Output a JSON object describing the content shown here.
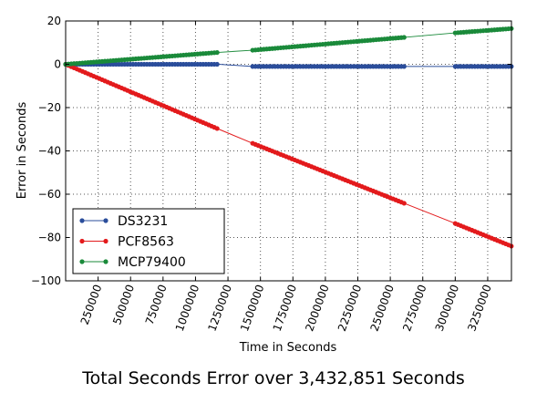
{
  "chart_data": {
    "type": "line",
    "title": "",
    "xlabel": "Time in Seconds",
    "ylabel": "Error in Seconds",
    "xlim": [
      0,
      3432851
    ],
    "ylim": [
      -100,
      20
    ],
    "xticks": [
      250000,
      500000,
      750000,
      1000000,
      1250000,
      1500000,
      1750000,
      2000000,
      2250000,
      2500000,
      2750000,
      3000000,
      3250000
    ],
    "yticks": [
      -100,
      -80,
      -60,
      -40,
      -20,
      0,
      20
    ],
    "grid": true,
    "legend_position": "lower-left",
    "series": [
      {
        "name": "DS3231",
        "color": "#2a4d9b",
        "segments": [
          [
            0,
            1180000
          ],
          [
            1440000,
            2620000
          ],
          [
            3000000,
            3432851
          ]
        ],
        "points": [
          [
            0,
            0
          ],
          [
            1180000,
            0
          ],
          [
            1440000,
            -1
          ],
          [
            2620000,
            -1
          ],
          [
            3000000,
            -1
          ],
          [
            3432851,
            -1
          ]
        ]
      },
      {
        "name": "PCF8563",
        "color": "#e31a1c",
        "segments": [
          [
            0,
            1180000
          ],
          [
            1440000,
            2620000
          ],
          [
            3000000,
            3432851
          ]
        ],
        "points": [
          [
            0,
            0
          ],
          [
            1180000,
            -30
          ],
          [
            1440000,
            -36.5
          ],
          [
            2620000,
            -64.5
          ],
          [
            3000000,
            -73.5
          ],
          [
            3432851,
            -84
          ]
        ]
      },
      {
        "name": "MCP79400",
        "color": "#1a8a3a",
        "segments": [
          [
            0,
            1180000
          ],
          [
            1440000,
            2620000
          ],
          [
            3000000,
            3432851
          ]
        ],
        "points": [
          [
            0,
            0
          ],
          [
            1180000,
            5.5
          ],
          [
            1440000,
            6.5
          ],
          [
            2620000,
            12.5
          ],
          [
            3000000,
            14.5
          ],
          [
            3432851,
            16.5
          ]
        ]
      }
    ]
  },
  "caption": "Total Seconds Error over 3,432,851 Seconds"
}
